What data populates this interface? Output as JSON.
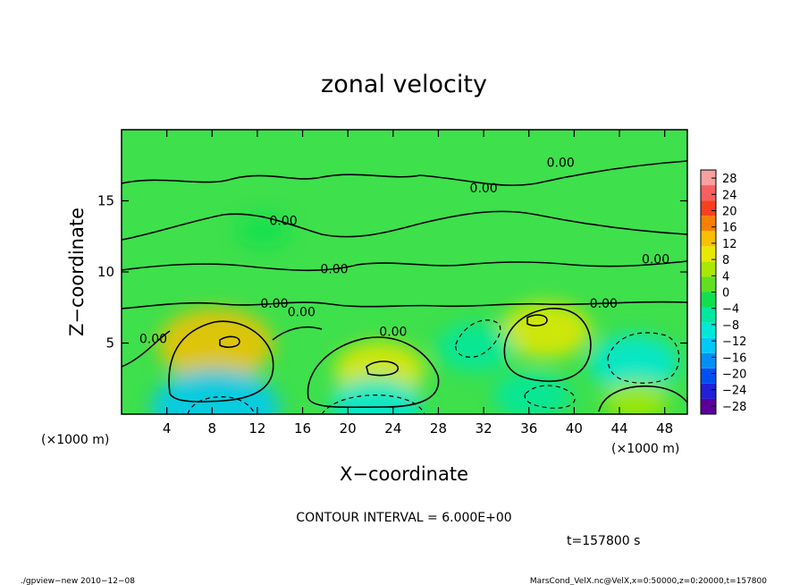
{
  "chart_data": {
    "type": "heatmap",
    "title": "zonal velocity",
    "xlabel": "X−coordinate",
    "ylabel": "Z−coordinate",
    "x_unit": "(×1000 m)",
    "z_unit": "(×1000 m)",
    "xlim": [
      0,
      50
    ],
    "ylim": [
      0,
      20
    ],
    "x_ticks": [
      4,
      8,
      12,
      16,
      20,
      24,
      28,
      32,
      36,
      40,
      44,
      48
    ],
    "y_ticks": [
      5,
      10,
      15
    ],
    "colorbar": {
      "ticks": [
        28,
        24,
        20,
        16,
        12,
        8,
        4,
        0,
        -4,
        -8,
        -12,
        -16,
        -20,
        -24,
        -28
      ],
      "tick_labels": [
        "28",
        "24",
        "20",
        "16",
        "12",
        "8",
        "4",
        "0",
        "−4",
        "−8",
        "−12",
        "−16",
        "−20",
        "−24",
        "−28"
      ],
      "range": [
        -30,
        30
      ],
      "colors": [
        "#5a009a",
        "#2020d8",
        "#0050f0",
        "#0090f8",
        "#00c8f8",
        "#00e8d8",
        "#00e8a0",
        "#10e050",
        "#60e020",
        "#a8e800",
        "#e8e800",
        "#f8c000",
        "#f88000",
        "#f84020",
        "#f86060",
        "#f8a0a0"
      ]
    },
    "contour_interval": "CONTOUR INTERVAL = 6.000E+00",
    "contour_labels": [
      {
        "text": "0.00",
        "x": 38.8,
        "z": 17.4
      },
      {
        "text": "0.00",
        "x": 32.0,
        "z": 15.6
      },
      {
        "text": "0.00",
        "x": 14.3,
        "z": 13.3
      },
      {
        "text": "0.00",
        "x": 18.8,
        "z": 9.9
      },
      {
        "text": "0.00",
        "x": 47.2,
        "z": 10.6
      },
      {
        "text": "0.00",
        "x": 13.5,
        "z": 7.5
      },
      {
        "text": "0.00",
        "x": 15.9,
        "z": 6.9
      },
      {
        "text": "0.00",
        "x": 42.6,
        "z": 7.5
      },
      {
        "text": "0.00",
        "x": 24.0,
        "z": 5.5
      },
      {
        "text": "0.00",
        "x": 2.8,
        "z": 5.0
      }
    ],
    "features": [
      {
        "x": 8.3,
        "z": 4.9,
        "value": 12,
        "sign": "positive"
      },
      {
        "x": 37.5,
        "z": 5.9,
        "value": 8,
        "sign": "positive"
      },
      {
        "x": 22.8,
        "z": 3.1,
        "value": 8,
        "sign": "positive"
      },
      {
        "x": 8.3,
        "z": 0.4,
        "value": -14,
        "sign": "negative"
      },
      {
        "x": 22.5,
        "z": 0.6,
        "value": -8,
        "sign": "negative"
      },
      {
        "x": 45.3,
        "z": 3.6,
        "value": -8,
        "sign": "negative"
      },
      {
        "x": 31.3,
        "z": 4.7,
        "value": -6,
        "sign": "negative"
      },
      {
        "x": 36.3,
        "z": 1.3,
        "value": -6,
        "sign": "negative"
      },
      {
        "x": 45.5,
        "z": 0.9,
        "value": 4,
        "sign": "positive"
      },
      {
        "x": 12.5,
        "z": 12.9,
        "value": -2,
        "sign": "negative"
      }
    ],
    "time_label": "t=157800 s"
  },
  "footer": {
    "left": "./gpview−new   2010−12−08",
    "right": "MarsCond_VelX.nc@VelX,x=0:50000,z=0:20000,t=157800"
  }
}
